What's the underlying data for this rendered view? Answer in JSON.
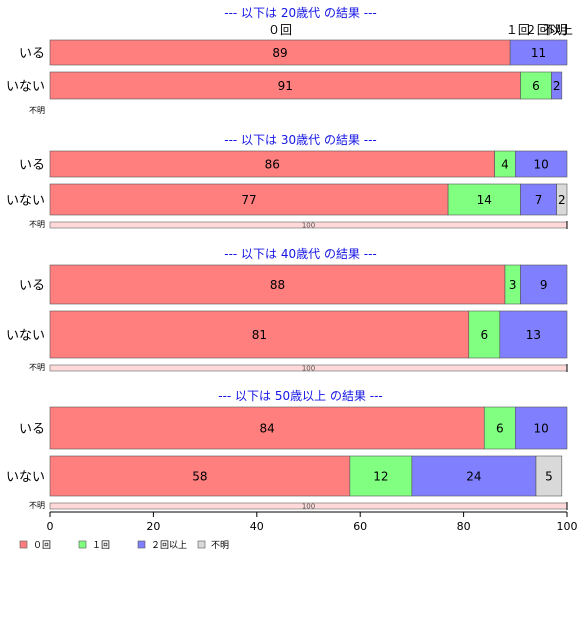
{
  "chart_data": {
    "type": "bar",
    "orientation": "horizontal",
    "stacked": true,
    "xlim": [
      0,
      100
    ],
    "x_ticks": [
      0,
      20,
      40,
      60,
      80,
      100
    ],
    "colors": [
      "#ff7f7f",
      "#80ff80",
      "#8080ff",
      "#d9d9d9"
    ],
    "legend": {
      "position": "bottom-left",
      "entries": [
        "０回",
        "１回",
        "２回以上",
        "不明"
      ]
    },
    "top_labels": [
      {
        "text": "０回",
        "x": 44.5
      },
      {
        "text": "１回",
        "x": 90.5
      },
      {
        "text": "２回以上",
        "x": 96.5
      },
      {
        "text": "不明",
        "x": 100
      }
    ],
    "panels": [
      {
        "title": "--- 以下は 20歳代 の結果 ---",
        "rows": [
          {
            "label": "いる",
            "values": [
              89,
              0,
              11,
              0
            ],
            "labels": [
              "89",
              "",
              "11",
              ""
            ]
          },
          {
            "label": "いない",
            "values": [
              91,
              6,
              2,
              0
            ],
            "labels": [
              "91",
              "6",
              "2",
              ""
            ]
          }
        ],
        "unknown": {
          "label": "不明",
          "value": 0,
          "value_label": ""
        }
      },
      {
        "title": "--- 以下は 30歳代 の結果 ---",
        "rows": [
          {
            "label": "いる",
            "values": [
              86,
              4,
              10,
              0
            ],
            "labels": [
              "86",
              "4",
              "10",
              ""
            ]
          },
          {
            "label": "いない",
            "values": [
              77,
              14,
              7,
              2
            ],
            "labels": [
              "77",
              "14",
              "7",
              "2"
            ]
          }
        ],
        "unknown": {
          "label": "不明",
          "value": 100,
          "value_label": "100"
        }
      },
      {
        "title": "--- 以下は 40歳代 の結果 ---",
        "rows": [
          {
            "label": "いる",
            "values": [
              88,
              3,
              9,
              0
            ],
            "labels": [
              "88",
              "3",
              "9",
              ""
            ]
          },
          {
            "label": "いない",
            "values": [
              81,
              6,
              13,
              0
            ],
            "labels": [
              "81",
              "6",
              "13",
              ""
            ]
          }
        ],
        "unknown": {
          "label": "不明",
          "value": 100,
          "value_label": "100"
        }
      },
      {
        "title": "--- 以下は 50歳以上 の結果 ---",
        "rows": [
          {
            "label": "いる",
            "values": [
              84,
              6,
              10,
              0
            ],
            "labels": [
              "84",
              "6",
              "10",
              ""
            ]
          },
          {
            "label": "いない",
            "values": [
              58,
              12,
              24,
              5
            ],
            "labels": [
              "58",
              "12",
              "24",
              "5"
            ]
          }
        ],
        "unknown": {
          "label": "不明",
          "value": 100,
          "value_label": "100"
        }
      }
    ]
  }
}
